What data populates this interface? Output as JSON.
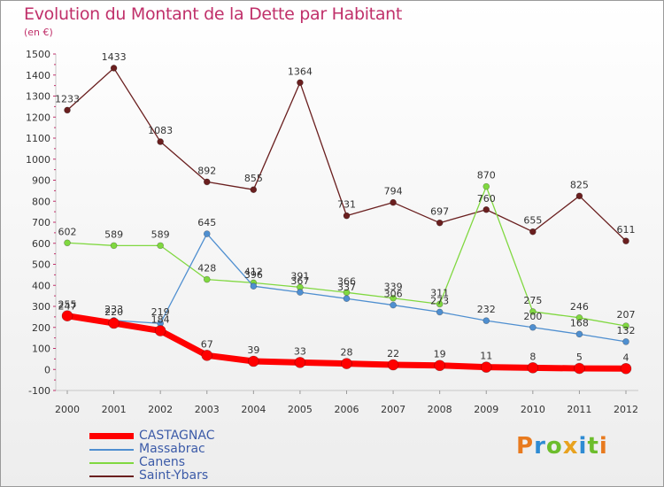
{
  "chart_data": {
    "type": "line",
    "title": "Evolution du Montant de la Dette par Habitant",
    "subtitle": "(en €)",
    "categories": [
      "2000",
      "2001",
      "2002",
      "2003",
      "2004",
      "2005",
      "2006",
      "2007",
      "2008",
      "2009",
      "2010",
      "2011",
      "2012"
    ],
    "ylim": [
      -100,
      1500
    ],
    "yticks": [
      -100,
      0,
      100,
      200,
      300,
      400,
      500,
      600,
      700,
      800,
      900,
      1000,
      1100,
      1200,
      1300,
      1400,
      1500
    ],
    "grid": false,
    "legend_position": "bottom-left",
    "series": [
      {
        "name": "CASTAGNAC",
        "color": "#ff0000",
        "values": [
          255,
          220,
          184,
          67,
          39,
          33,
          28,
          22,
          19,
          11,
          8,
          5,
          4
        ],
        "labels": [
          255,
          220,
          184,
          67,
          39,
          33,
          28,
          22,
          19,
          11,
          8,
          5,
          4
        ]
      },
      {
        "name": "Massabrac",
        "color": "#4f8fd0",
        "values": [
          247,
          233,
          219,
          645,
          396,
          367,
          337,
          306,
          273,
          232,
          200,
          168,
          132
        ],
        "labels": [
          247,
          233,
          219,
          645,
          396,
          367,
          337,
          306,
          273,
          232,
          200,
          168,
          132
        ]
      },
      {
        "name": "Canens",
        "color": "#80d840",
        "values": [
          602,
          589,
          589,
          428,
          412,
          391,
          366,
          339,
          311,
          870,
          275,
          246,
          207
        ],
        "labels": [
          602,
          589,
          589,
          428,
          412,
          391,
          366,
          339,
          311,
          870,
          275,
          246,
          207
        ]
      },
      {
        "name": "Saint-Ybars",
        "color": "#6a1f1f",
        "values": [
          1233,
          1433,
          1083,
          892,
          855,
          1364,
          731,
          794,
          697,
          760,
          655,
          825,
          611
        ],
        "labels": [
          1233,
          1433,
          1083,
          892,
          855,
          1364,
          731,
          794,
          697,
          760,
          655,
          825,
          611
        ]
      }
    ]
  },
  "legend": {
    "items": [
      {
        "label": "CASTAGNAC",
        "color": "#ff0000"
      },
      {
        "label": "Massabrac",
        "color": "#4f8fd0"
      },
      {
        "label": "Canens",
        "color": "#80d840"
      },
      {
        "label": "Saint-Ybars",
        "color": "#6a1f1f"
      }
    ]
  },
  "logo": {
    "text": "Proxiti",
    "letters": [
      {
        "ch": "P",
        "color": "#e87a1e"
      },
      {
        "ch": "r",
        "color": "#2e8bd3"
      },
      {
        "ch": "o",
        "color": "#6cbd2c"
      },
      {
        "ch": "x",
        "color": "#e8a21e"
      },
      {
        "ch": "i",
        "color": "#2e8bd3"
      },
      {
        "ch": "t",
        "color": "#6cbd2c"
      },
      {
        "ch": "i",
        "color": "#e87a1e"
      }
    ]
  }
}
